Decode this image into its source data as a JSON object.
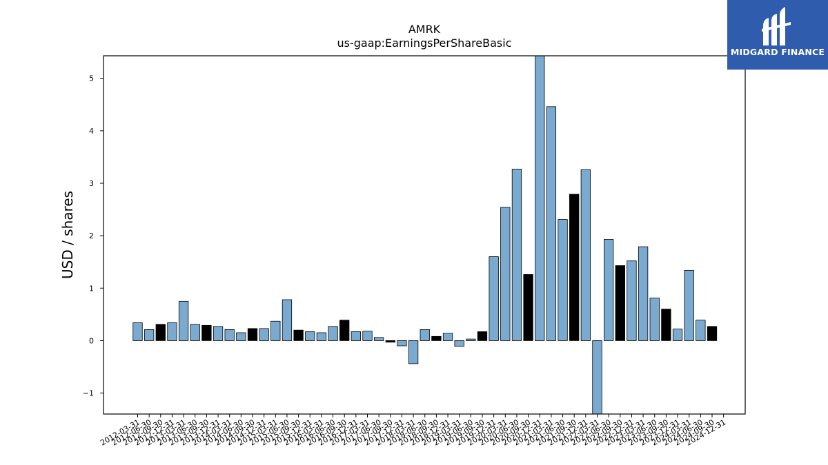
{
  "brand": {
    "name": "MIDGARD FINANCE",
    "box_color": "#2f5cad",
    "logo_icon": "midgard-logo-icon"
  },
  "chart_data": {
    "type": "bar",
    "title": "AMRK",
    "subtitle": "us-gaap:EarningsPerShareBasic",
    "ylabel": "USD / shares",
    "xlabel": "",
    "ylim": [
      -1.4,
      5.43
    ],
    "yticks": [
      -1,
      0,
      1,
      2,
      3,
      4,
      5
    ],
    "grid": false,
    "colors": {
      "light": "#7aaad0",
      "dark": "#000000",
      "edge": "#000000"
    },
    "categories": [
      "2012-03-31",
      "2012-06-30",
      "2012-09-30",
      "2012-12-31",
      "2013-03-31",
      "2013-06-30",
      "2013-09-30",
      "2013-12-31",
      "2014-03-31",
      "2014-06-30",
      "2014-09-30",
      "2014-12-31",
      "2015-03-31",
      "2015-06-30",
      "2015-09-30",
      "2015-12-31",
      "2016-03-31",
      "2016-06-30",
      "2016-09-30",
      "2016-12-31",
      "2017-03-31",
      "2017-06-30",
      "2017-09-30",
      "2017-12-31",
      "2018-03-31",
      "2018-06-30",
      "2018-09-30",
      "2018-12-31",
      "2019-03-31",
      "2019-06-30",
      "2019-09-30",
      "2019-12-31",
      "2020-03-31",
      "2020-06-30",
      "2020-09-30",
      "2020-12-31",
      "2021-03-31",
      "2021-06-30",
      "2021-09-30",
      "2021-12-31",
      "2022-03-31",
      "2022-06-30",
      "2022-09-30",
      "2022-12-31",
      "2023-03-31",
      "2023-06-30",
      "2023-09-30",
      "2023-12-31",
      "2024-03-31",
      "2024-06-30",
      "2024-09-30",
      "2024-12-31"
    ],
    "values": [
      0.34,
      0.21,
      0.31,
      0.34,
      0.75,
      0.31,
      0.29,
      0.27,
      0.21,
      0.15,
      0.23,
      0.23,
      0.37,
      0.78,
      0.2,
      0.17,
      0.15,
      0.27,
      0.39,
      0.17,
      0.18,
      0.06,
      -0.03,
      -0.1,
      -0.44,
      0.21,
      0.08,
      0.14,
      -0.11,
      0.03,
      0.17,
      1.6,
      2.54,
      3.27,
      1.26,
      5.6,
      4.46,
      2.31,
      2.79,
      3.26,
      -1.5,
      1.93,
      1.43,
      1.52,
      1.79,
      0.81,
      0.6,
      0.22,
      1.34,
      0.39,
      0.27,
      null
    ],
    "bar_color_keys": [
      "light",
      "light",
      "dark",
      "light",
      "light",
      "light",
      "dark",
      "light",
      "light",
      "light",
      "dark",
      "light",
      "light",
      "light",
      "dark",
      "light",
      "light",
      "light",
      "dark",
      "light",
      "light",
      "light",
      "dark",
      "light",
      "light",
      "light",
      "dark",
      "light",
      "light",
      "light",
      "dark",
      "light",
      "light",
      "light",
      "dark",
      "light",
      "light",
      "light",
      "dark",
      "light",
      "light",
      "light",
      "dark",
      "light",
      "light",
      "light",
      "dark",
      "light",
      "light",
      "light",
      "dark",
      "light"
    ]
  }
}
